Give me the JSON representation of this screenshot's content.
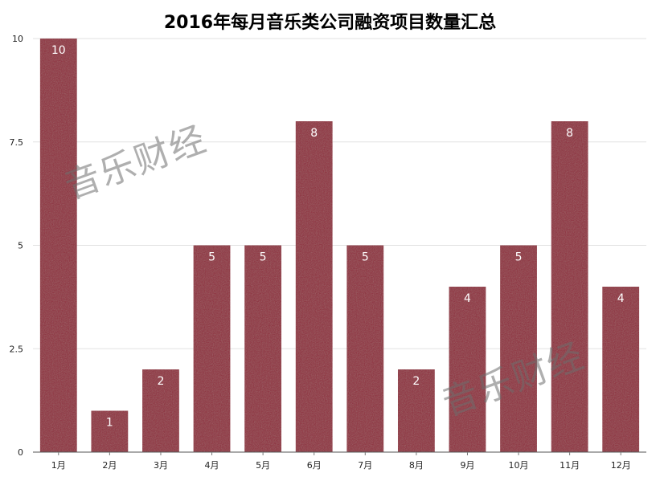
{
  "chart_data": {
    "type": "bar",
    "title": "2016年每月音乐类公司融资项目数量汇总",
    "categories": [
      "1月",
      "2月",
      "3月",
      "4月",
      "5月",
      "6月",
      "7月",
      "8月",
      "9月",
      "10月",
      "11月",
      "12月"
    ],
    "values": [
      10,
      1,
      2,
      5,
      5,
      8,
      5,
      2,
      4,
      5,
      8,
      4
    ],
    "xlabel": "",
    "ylabel": "",
    "ylim": [
      0,
      10
    ],
    "yticks": [
      "0",
      "2.5",
      "5",
      "7.5",
      "10"
    ],
    "grid": true,
    "data_labels": true,
    "bar_color": "#8f2a3a"
  },
  "watermark": {
    "text": "音乐财经"
  }
}
